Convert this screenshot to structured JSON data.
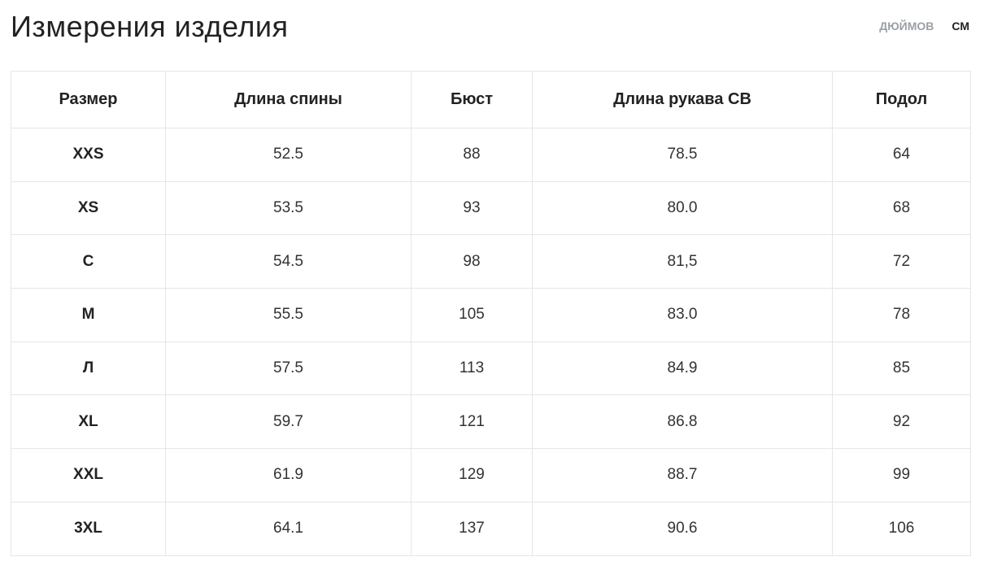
{
  "header": {
    "title": "Измерения изделия",
    "units": [
      "ДЮЙМОВ",
      "СМ"
    ]
  },
  "table": {
    "columns": [
      "Размер",
      "Длина спины",
      "Бюст",
      "Длина рукава CB",
      "Подол"
    ],
    "rows": [
      [
        "XXS",
        "52.5",
        "88",
        "78.5",
        "64"
      ],
      [
        "XS",
        "53.5",
        "93",
        "80.0",
        "68"
      ],
      [
        "С",
        "54.5",
        "98",
        "81,5",
        "72"
      ],
      [
        "М",
        "55.5",
        "105",
        "83.0",
        "78"
      ],
      [
        "Л",
        "57.5",
        "113",
        "84.9",
        "85"
      ],
      [
        "XL",
        "59.7",
        "121",
        "86.8",
        "92"
      ],
      [
        "XXL",
        "61.9",
        "129",
        "88.7",
        "99"
      ],
      [
        "3XL",
        "64.1",
        "137",
        "90.6",
        "106"
      ]
    ]
  }
}
